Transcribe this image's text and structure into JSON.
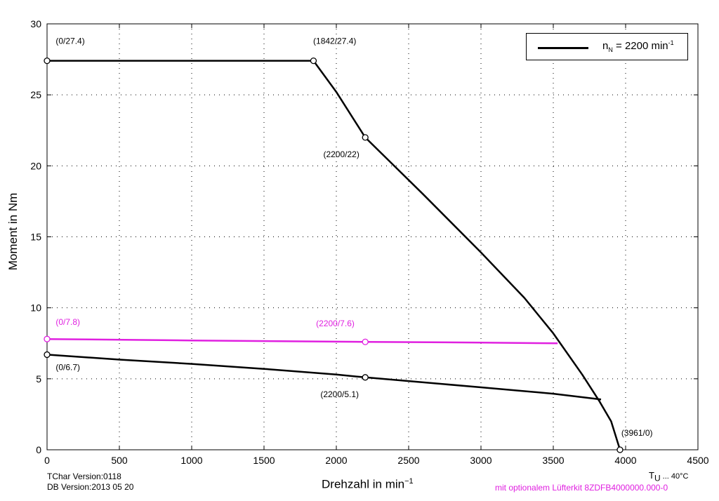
{
  "chart_data": {
    "type": "line",
    "xlabel": "Drehzahl in min",
    "xlabel_exp": "−1",
    "ylabel": "Moment in Nm",
    "xlim": [
      0,
      4500
    ],
    "ylim": [
      0,
      30
    ],
    "grid": true,
    "x_ticks": [
      "0",
      "500",
      "1000",
      "1500",
      "2000",
      "2500",
      "3000",
      "3500",
      "4000",
      "4500"
    ],
    "y_ticks": [
      "0",
      "5",
      "10",
      "15",
      "20",
      "25",
      "30"
    ],
    "legend": {
      "position": "top-right",
      "label_main": "n",
      "label_sub": "N",
      "label_rest": " = 2200 min",
      "label_exp": "-1"
    },
    "colors": {
      "main": "#000000",
      "fan": "#e020e0"
    },
    "series": [
      {
        "role": "peak_torque",
        "color": "#000000",
        "points": [
          [
            0,
            27.4
          ],
          [
            1842,
            27.4
          ],
          [
            2000,
            25.2
          ],
          [
            2200,
            22.0
          ],
          [
            2600,
            18.0
          ],
          [
            3000,
            13.9
          ],
          [
            3300,
            10.7
          ],
          [
            3500,
            8.2
          ],
          [
            3700,
            5.3
          ],
          [
            3820,
            3.4
          ],
          [
            3900,
            2.0
          ],
          [
            3961,
            0
          ]
        ]
      },
      {
        "role": "continuous_torque",
        "color": "#000000",
        "points": [
          [
            0,
            6.7
          ],
          [
            500,
            6.35
          ],
          [
            1000,
            6.05
          ],
          [
            1500,
            5.7
          ],
          [
            2000,
            5.3
          ],
          [
            2200,
            5.1
          ],
          [
            2600,
            4.75
          ],
          [
            3000,
            4.4
          ],
          [
            3500,
            3.95
          ],
          [
            3830,
            3.55
          ]
        ]
      },
      {
        "role": "continuous_torque_with_fan",
        "color": "#e020e0",
        "points": [
          [
            0,
            7.8
          ],
          [
            1000,
            7.7
          ],
          [
            2200,
            7.6
          ],
          [
            3000,
            7.55
          ],
          [
            3530,
            7.5
          ]
        ]
      }
    ],
    "markers": [
      {
        "x": 0,
        "y": 27.4,
        "color": "#000000"
      },
      {
        "x": 1842,
        "y": 27.4,
        "color": "#000000"
      },
      {
        "x": 2200,
        "y": 22.0,
        "color": "#000000"
      },
      {
        "x": 3961,
        "y": 0,
        "color": "#000000"
      },
      {
        "x": 0,
        "y": 6.7,
        "color": "#000000"
      },
      {
        "x": 2200,
        "y": 5.1,
        "color": "#000000"
      },
      {
        "x": 0,
        "y": 7.8,
        "color": "#e020e0"
      },
      {
        "x": 2200,
        "y": 7.6,
        "color": "#e020e0"
      }
    ],
    "annotations": [
      {
        "text": "(0/27.4)",
        "x": 60,
        "y": 28.6,
        "color": "#000000"
      },
      {
        "text": "(1842/27.4)",
        "x": 1840,
        "y": 28.6,
        "color": "#000000"
      },
      {
        "text": "(2200/22)",
        "x": 1910,
        "y": 20.6,
        "color": "#000000"
      },
      {
        "text": "(3961/0)",
        "x": 3970,
        "y": 1.0,
        "color": "#000000"
      },
      {
        "text": "(0/7.8)",
        "x": 60,
        "y": 8.8,
        "color": "#e020e0"
      },
      {
        "text": "(2200/7.6)",
        "x": 1860,
        "y": 8.7,
        "color": "#e020e0"
      },
      {
        "text": "(0/6.7)",
        "x": 60,
        "y": 5.6,
        "color": "#000000"
      },
      {
        "text": "(2200/5.1)",
        "x": 1890,
        "y": 3.7,
        "color": "#000000"
      }
    ]
  },
  "footer": {
    "tchar_version": "TChar Version:0118",
    "db_version": "DB Version:2013 05 20",
    "ambient_main": "T",
    "ambient_sub": "U",
    "ambient_rest": " ... 40°C",
    "fan_note": "mit optionalem Lüfterkit 8ZDFB4000000.000-0"
  }
}
